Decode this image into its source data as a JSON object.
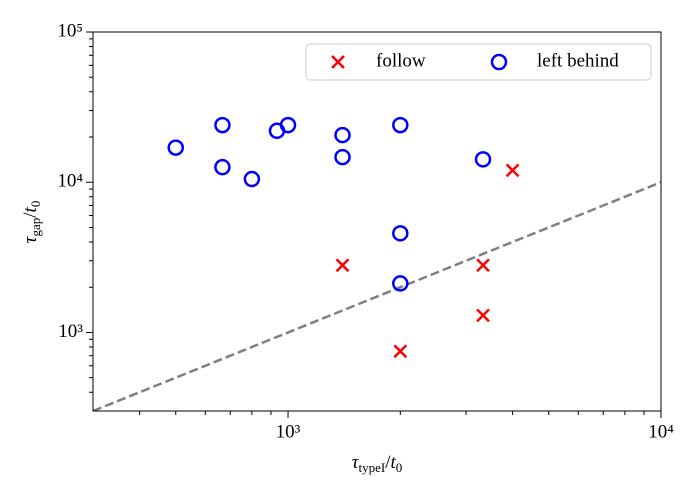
{
  "chart_data": {
    "type": "scatter",
    "log_x": true,
    "log_y": true,
    "xlim": [
      300,
      10000
    ],
    "ylim": [
      300,
      100000
    ],
    "xticks": [
      {
        "value": 1000,
        "label": "10³"
      },
      {
        "value": 10000,
        "label": "10⁴"
      }
    ],
    "yticks": [
      {
        "value": 1000,
        "label": "10³"
      },
      {
        "value": 10000,
        "label": "10⁴"
      },
      {
        "value": 100000,
        "label": "10⁵"
      }
    ],
    "xminorticks": [
      400,
      500,
      600,
      700,
      800,
      900,
      2000,
      3000,
      4000,
      5000,
      6000,
      7000,
      8000,
      9000
    ],
    "yminorticks": [
      400,
      500,
      600,
      700,
      800,
      900,
      2000,
      3000,
      4000,
      5000,
      6000,
      7000,
      8000,
      9000,
      20000,
      30000,
      40000,
      50000,
      60000,
      70000,
      80000,
      90000
    ],
    "xlabel": [
      "τ",
      "typeI",
      "/",
      "t",
      "0"
    ],
    "ylabel": [
      "τ",
      "gap",
      "/",
      "t",
      "0"
    ],
    "legend": "upper right",
    "reference_line": {
      "x": [
        300,
        10000
      ],
      "values": [
        300,
        10000
      ],
      "color": "#808080",
      "style": "dashed"
    },
    "series": [
      {
        "name": "follow",
        "color": "#ff0000",
        "marker": "x",
        "x": [
          4000,
          1400,
          3333,
          3333,
          2000
        ],
        "values": [
          12000,
          2800,
          2800,
          1300,
          750
        ]
      },
      {
        "name": "left behind",
        "color": "#0000ff",
        "marker": "o",
        "x": [
          500,
          667,
          667,
          800,
          934,
          1000,
          1400,
          1400,
          2000,
          3333,
          2000,
          2000
        ],
        "values": [
          17000,
          24000,
          12600,
          10500,
          22000,
          24000,
          20600,
          14700,
          24000,
          14200,
          4570,
          2120
        ]
      }
    ]
  }
}
